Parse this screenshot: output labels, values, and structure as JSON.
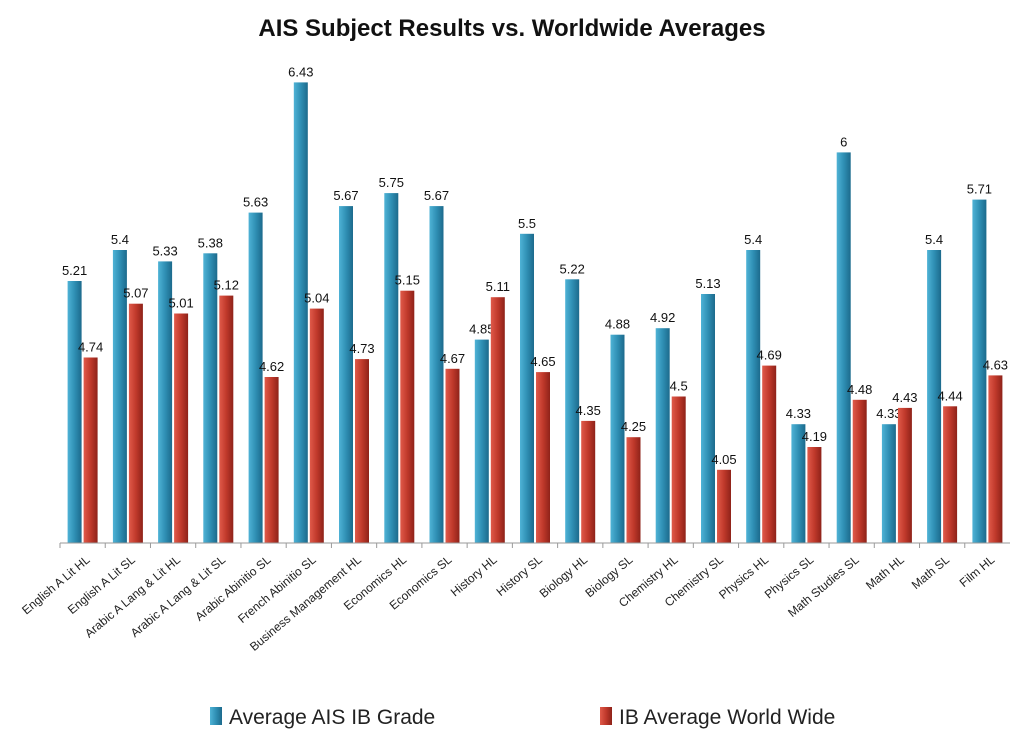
{
  "chart_data": {
    "type": "bar",
    "title": "AIS Subject Results vs. Worldwide Averages",
    "xlabel": "",
    "ylabel": "",
    "ylim": [
      3.6,
      6.5
    ],
    "grid": false,
    "legend_position": "bottom",
    "categories": [
      "English A Lit HL",
      "English A Lit SL",
      "Arabic A Lang & Lit HL",
      "Arabic A Lang & Lit SL",
      "Arabic Abinitio SL",
      "French Abinitio SL",
      "Business Management HL",
      "Economics HL",
      "Economics SL",
      "History HL",
      "History SL",
      "Biology HL",
      "Biology SL",
      "Chemistry HL",
      "Chemistry SL",
      "Physics HL",
      "Physics SL",
      "Math Studies SL",
      "Math HL",
      "Math SL",
      "Film HL"
    ],
    "series": [
      {
        "name": "Average AIS IB Grade",
        "color": "#2f8fb4",
        "values": [
          5.21,
          5.4,
          5.33,
          5.38,
          5.63,
          6.43,
          5.67,
          5.75,
          5.67,
          4.85,
          5.5,
          5.22,
          4.88,
          4.92,
          5.13,
          5.4,
          4.33,
          6,
          4.33,
          5.4,
          5.71
        ],
        "labels": [
          "5.21",
          "5.4",
          "5.33",
          "5.38",
          "5.63",
          "6.43",
          "5.67",
          "5.75",
          "5.67",
          "4.85",
          "5.5",
          "5.22",
          "4.88",
          "4.92",
          "5.13",
          "5.4",
          "4.33",
          "6",
          "4.33",
          "5.4",
          "5.71"
        ]
      },
      {
        "name": "IB Average World Wide",
        "color": "#c0392b",
        "values": [
          4.74,
          5.07,
          5.01,
          5.12,
          4.62,
          5.04,
          4.73,
          5.15,
          4.67,
          5.11,
          4.65,
          4.35,
          4.25,
          4.5,
          4.05,
          4.69,
          4.19,
          4.48,
          4.43,
          4.44,
          4.63
        ],
        "labels": [
          "4.74",
          "5.07",
          "5.01",
          "5.12",
          "4.62",
          "5.04",
          "4.73",
          "5.15",
          "4.67",
          "5.11",
          "4.65",
          "4.35",
          "4.25",
          "4.5",
          "4.05",
          "4.69",
          "4.19",
          "4.48",
          "4.43",
          "4.44",
          "4.63"
        ]
      }
    ]
  }
}
